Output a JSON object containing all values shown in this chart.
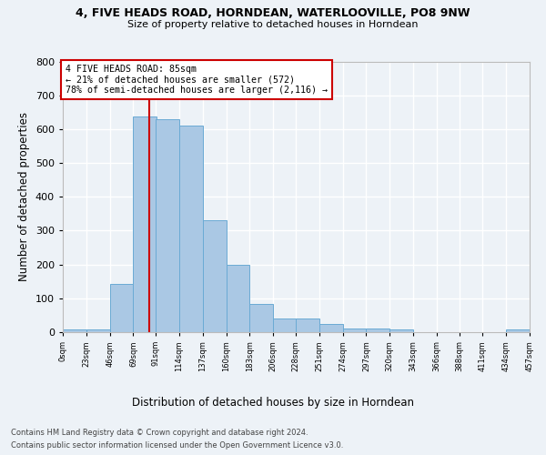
{
  "title1": "4, FIVE HEADS ROAD, HORNDEAN, WATERLOOVILLE, PO8 9NW",
  "title2": "Size of property relative to detached houses in Horndean",
  "xlabel": "Distribution of detached houses by size in Horndean",
  "ylabel": "Number of detached properties",
  "bar_color": "#aac8e4",
  "bar_edge_color": "#6aaad4",
  "bin_width": 23,
  "bin_starts": [
    0,
    23,
    46,
    69,
    91,
    114,
    137,
    160,
    183,
    206,
    228,
    251,
    274,
    297,
    320,
    343,
    366,
    388,
    411,
    434
  ],
  "bar_heights": [
    7,
    8,
    143,
    638,
    630,
    610,
    330,
    200,
    83,
    40,
    40,
    25,
    12,
    12,
    8,
    0,
    0,
    0,
    0,
    7
  ],
  "property_size": 85,
  "red_line_color": "#cc0000",
  "annotation_text": "4 FIVE HEADS ROAD: 85sqm\n← 21% of detached houses are smaller (572)\n78% of semi-detached houses are larger (2,116) →",
  "annotation_box_color": "white",
  "annotation_box_edge": "#cc0000",
  "ylim": [
    0,
    800
  ],
  "yticks": [
    0,
    100,
    200,
    300,
    400,
    500,
    600,
    700,
    800
  ],
  "footer1": "Contains HM Land Registry data © Crown copyright and database right 2024.",
  "footer2": "Contains public sector information licensed under the Open Government Licence v3.0.",
  "background_color": "#edf2f7",
  "plot_bg_color": "#edf2f7",
  "grid_color": "#ffffff"
}
